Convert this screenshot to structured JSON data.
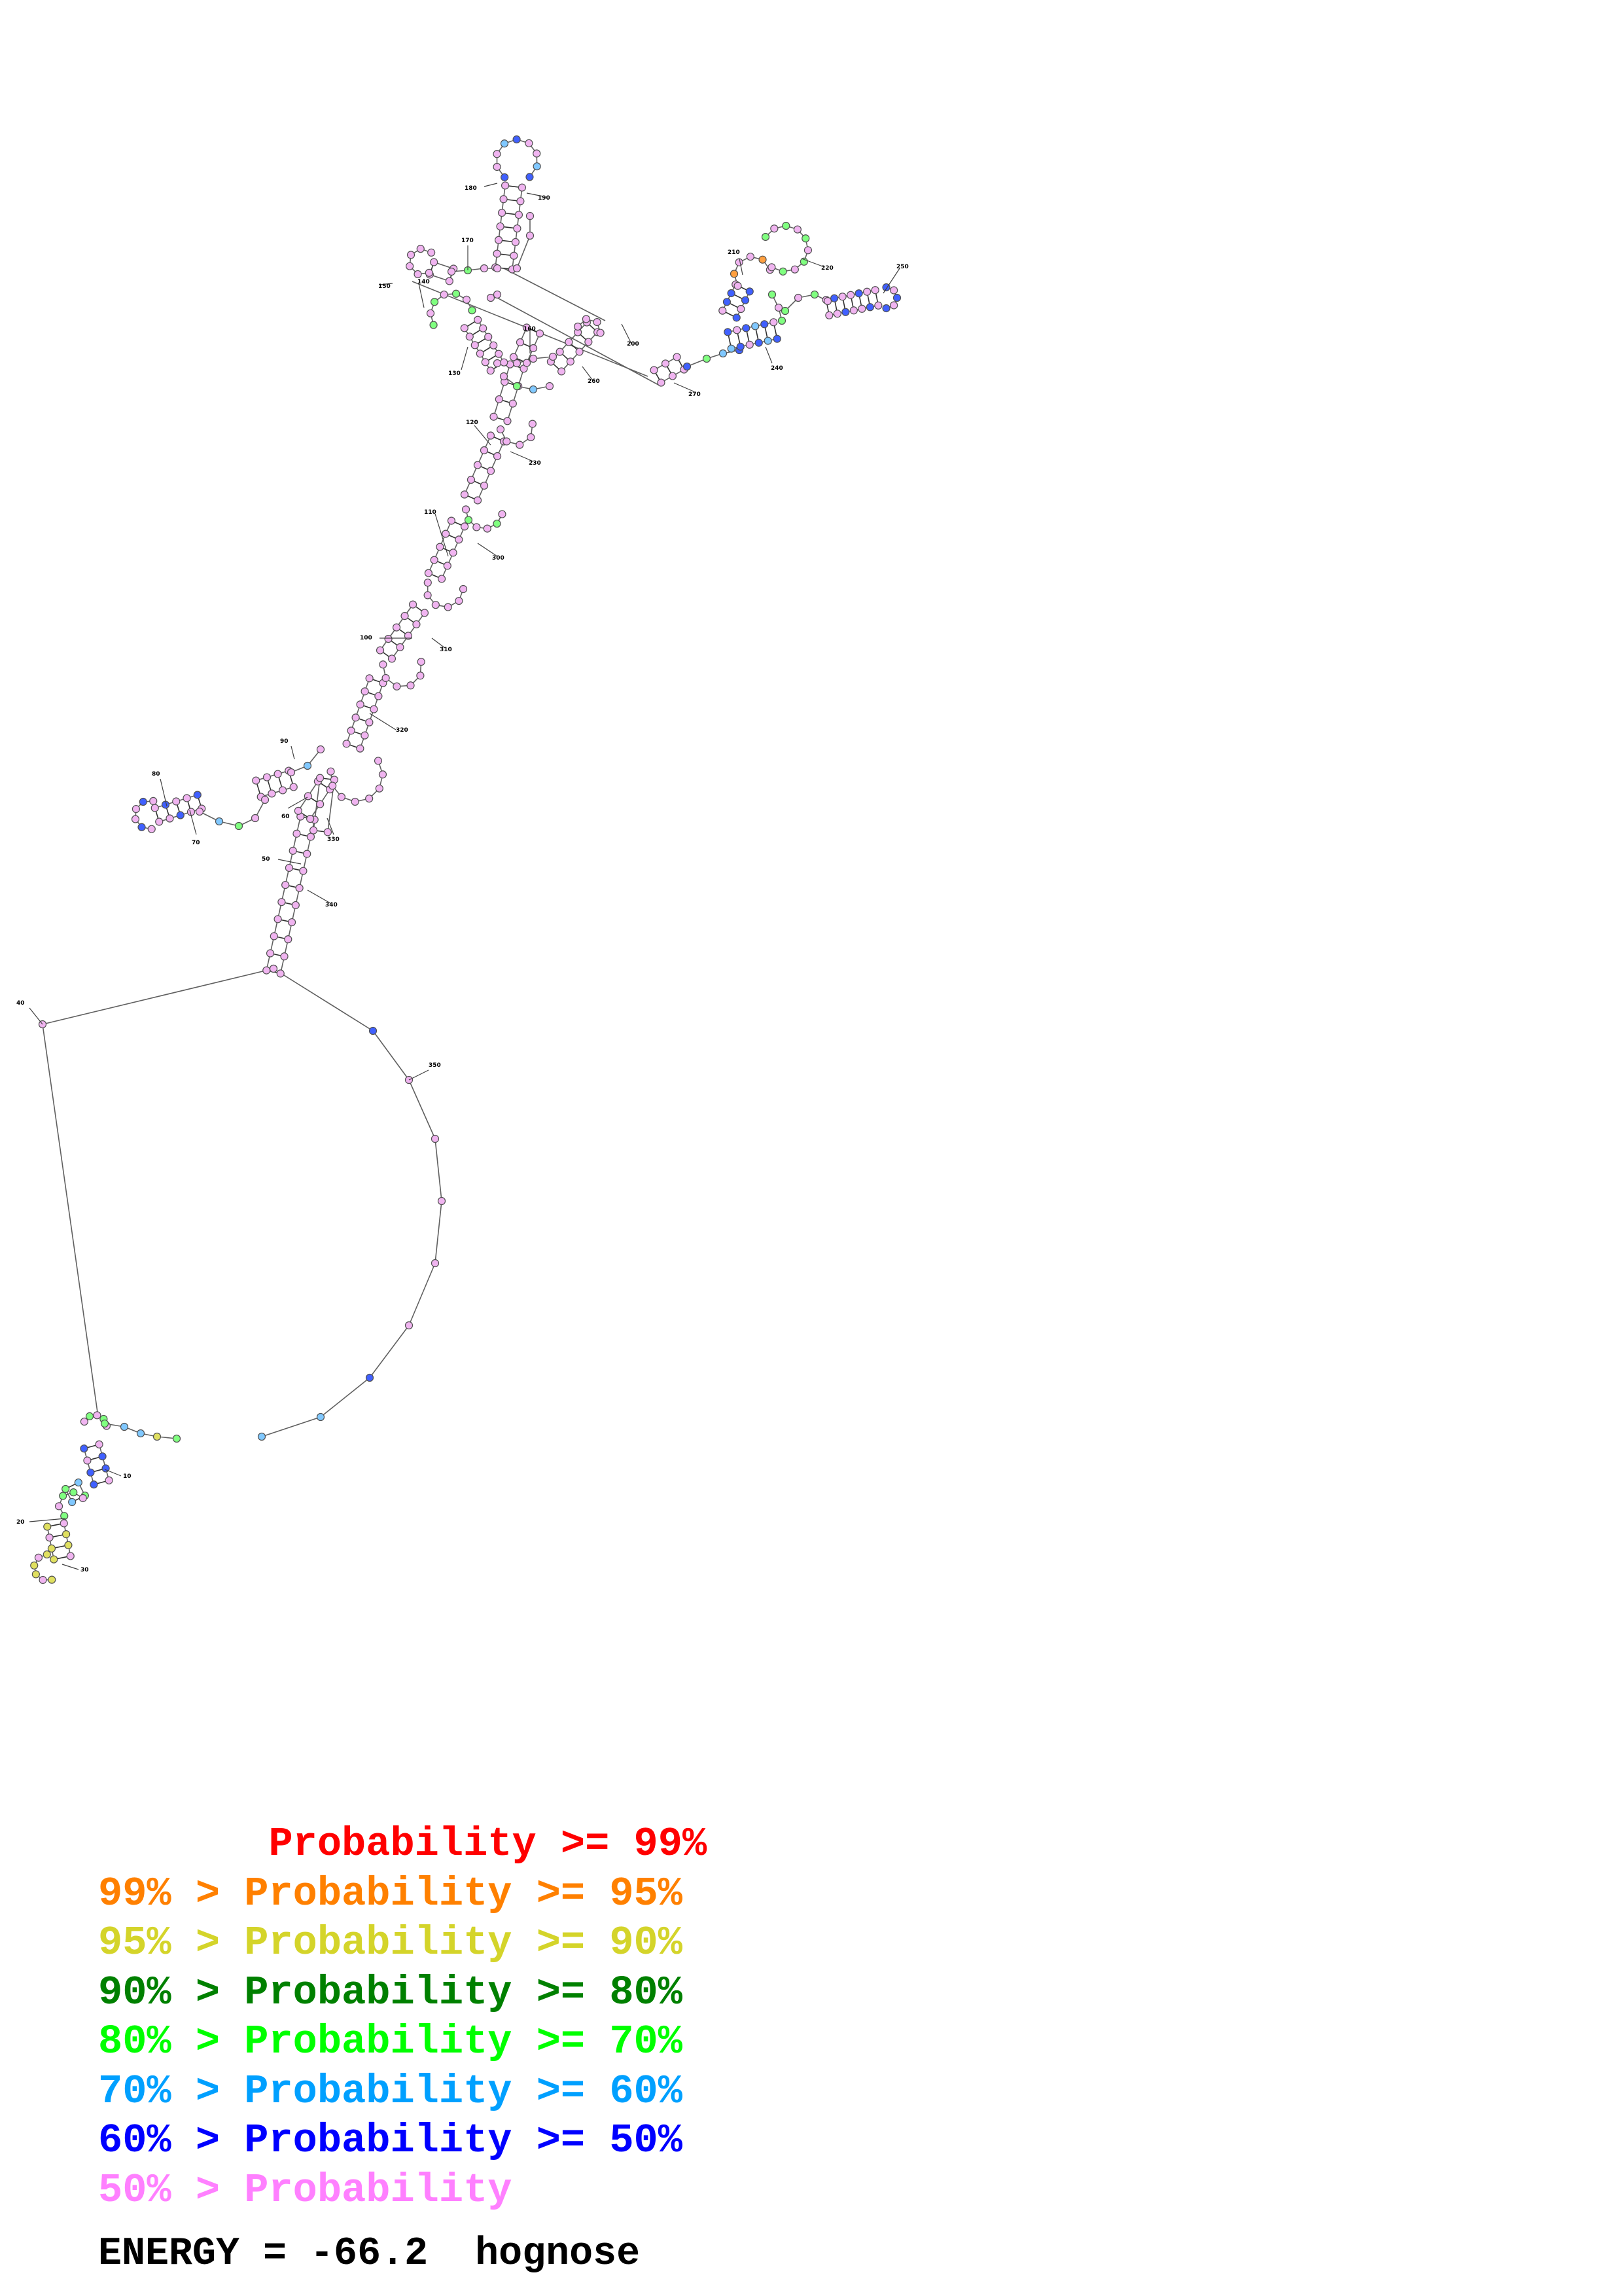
{
  "legend": [
    {
      "text": "       Probability >= 99%",
      "color": "#ff0000"
    },
    {
      "text": "99% > Probability >= 95%",
      "color": "#ff8000"
    },
    {
      "text": "95% > Probability >= 90%",
      "color": "#d4d42a"
    },
    {
      "text": "90% > Probability >= 80%",
      "color": "#008000"
    },
    {
      "text": "80% > Probability >= 70%",
      "color": "#00ff00"
    },
    {
      "text": "70% > Probability >= 60%",
      "color": "#00a0ff"
    },
    {
      "text": "60% > Probability >= 50%",
      "color": "#0000ff"
    },
    {
      "text": "50% > Probability",
      "color": "#ff80ff"
    }
  ],
  "energy_text": "ENERGY = -66.2  hognose",
  "position_labels": [
    "10",
    "20",
    "30",
    "40",
    "50",
    "60",
    "70",
    "80",
    "90",
    "100",
    "110",
    "120",
    "130",
    "140",
    "150",
    "160",
    "170",
    "180",
    "190",
    "200",
    "210",
    "220",
    "230",
    "240",
    "250",
    "260",
    "270",
    "280",
    "290",
    "300",
    "310",
    "320",
    "330",
    "340",
    "350"
  ],
  "colors": {
    "pink": "#f0b4f0",
    "green": "#80ff80",
    "blue": "#4060ff",
    "cyan": "#80c8ff",
    "yellow": "#e0e060",
    "orange": "#ffa040",
    "stroke": "#606060"
  }
}
